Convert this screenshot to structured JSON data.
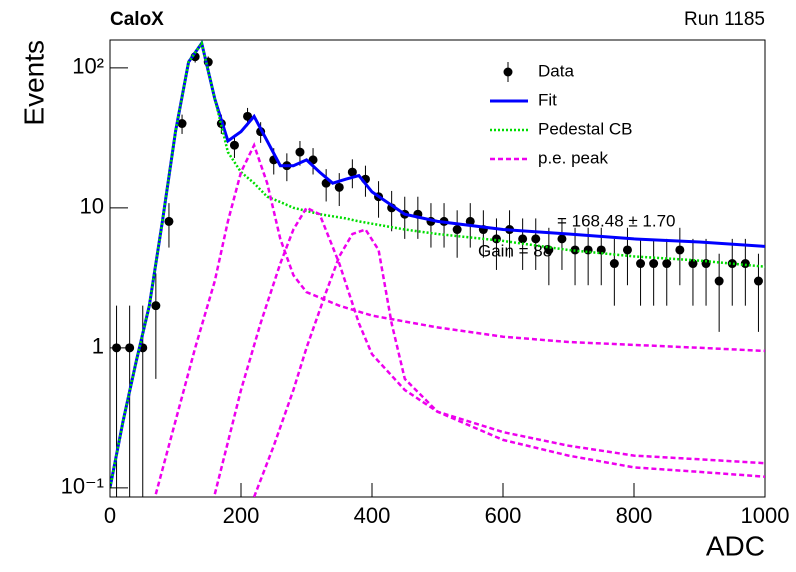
{
  "chart_data": {
    "type": "scatter",
    "log_y": true,
    "title": "CaloX",
    "subtitle": "Run 1185",
    "x_label": "ADC",
    "y_label": "Events",
    "annotations": [
      "= 168.48 ± 1.70",
      "Gain = 88"
    ],
    "xlim": [
      0,
      1000
    ],
    "xticks": [
      0,
      200,
      400,
      600,
      800,
      1000
    ],
    "ylim": [
      0.086,
      158
    ],
    "yticks": [
      {
        "value": 0.1,
        "label": "10⁻¹"
      },
      1,
      10,
      {
        "value": 100,
        "label": "10²"
      }
    ],
    "legend": "upper right",
    "series": [
      {
        "name": "Data",
        "kind": "errorbar",
        "color": "#000000",
        "x": [
          10,
          30,
          50,
          70,
          90,
          110,
          130,
          150,
          170,
          190,
          210,
          230,
          250,
          270,
          290,
          310,
          330,
          350,
          370,
          390,
          410,
          430,
          450,
          470,
          490,
          510,
          530,
          550,
          570,
          590,
          610,
          630,
          650,
          670,
          690,
          710,
          730,
          750,
          770,
          790,
          810,
          830,
          850,
          870,
          890,
          910,
          930,
          950,
          970,
          990
        ],
        "values": [
          1,
          1,
          1,
          2,
          8,
          40,
          120,
          110,
          40,
          28,
          45,
          35,
          22,
          20,
          25,
          22,
          15,
          14,
          18,
          16,
          12,
          10,
          9,
          9,
          8,
          8,
          7,
          8,
          7,
          6,
          7,
          6,
          6,
          5,
          6,
          5,
          5,
          5,
          4,
          5,
          4,
          4,
          4,
          5,
          4,
          4,
          3,
          4,
          4,
          3
        ],
        "errors": [
          1,
          1,
          1,
          1.4,
          2.8,
          6.3,
          11,
          10.5,
          6.3,
          5.3,
          6.7,
          5.9,
          4.7,
          4.5,
          5,
          4.7,
          3.9,
          3.7,
          4.2,
          4,
          3.5,
          3.2,
          3,
          3,
          2.8,
          2.8,
          2.6,
          2.8,
          2.6,
          2.4,
          2.6,
          2.4,
          2.4,
          2.2,
          2.4,
          2.2,
          2.2,
          2.2,
          2,
          2.2,
          2,
          2,
          2,
          2.2,
          2,
          2,
          1.7,
          2,
          2,
          1.7
        ]
      },
      {
        "name": "Fit",
        "kind": "line",
        "style": "solid",
        "color": "#0000ff",
        "x": [
          0,
          20,
          40,
          60,
          80,
          100,
          120,
          140,
          160,
          180,
          200,
          220,
          240,
          260,
          280,
          300,
          320,
          340,
          360,
          380,
          400,
          450,
          500,
          600,
          700,
          800,
          900,
          1000
        ],
        "values": [
          0.1,
          0.3,
          0.8,
          2,
          8,
          35,
          110,
          150,
          60,
          30,
          35,
          45,
          30,
          20,
          20,
          22,
          18,
          15,
          16,
          17,
          13,
          9,
          8,
          7,
          6.5,
          6,
          5.7,
          5.3
        ]
      },
      {
        "name": "Pedestal CB",
        "kind": "line",
        "style": "dotted",
        "color": "#00dd00",
        "x": [
          0,
          20,
          40,
          60,
          80,
          100,
          120,
          140,
          160,
          180,
          200,
          220,
          240,
          260,
          280,
          300,
          320,
          340,
          360,
          380,
          400,
          450,
          500,
          600,
          700,
          800,
          900,
          1000
        ],
        "values": [
          0.1,
          0.3,
          0.8,
          2,
          8,
          35,
          110,
          150,
          60,
          25,
          18,
          15,
          12,
          11,
          10,
          9.5,
          9,
          8.7,
          8.4,
          8,
          7.7,
          7,
          6.5,
          5.8,
          5,
          4.5,
          4.2,
          3.8
        ]
      },
      {
        "name": "p.e. peak",
        "kind": "line",
        "style": "dashed",
        "color": "#ee00ee",
        "x": [
          70,
          100,
          130,
          160,
          180,
          200,
          220,
          240,
          260,
          280,
          300,
          350,
          400,
          500,
          600,
          700,
          800,
          900,
          1000
        ],
        "values": [
          0.09,
          0.3,
          1,
          3,
          8,
          18,
          28,
          15,
          6,
          3.3,
          2.5,
          2,
          1.7,
          1.4,
          1.2,
          1.1,
          1.05,
          1,
          0.95
        ]
      },
      {
        "kind": "line",
        "style": "dashed",
        "color": "#ee00ee",
        "x": [
          160,
          200,
          230,
          260,
          280,
          300,
          320,
          350,
          380,
          400,
          450,
          500,
          600,
          700,
          800,
          900,
          1000
        ],
        "values": [
          0.09,
          0.5,
          1.5,
          4,
          7,
          10,
          9,
          4,
          1.5,
          0.9,
          0.5,
          0.35,
          0.25,
          0.2,
          0.17,
          0.16,
          0.15
        ]
      },
      {
        "kind": "line",
        "style": "dashed",
        "color": "#ee00ee",
        "x": [
          220,
          250,
          280,
          300,
          330,
          350,
          370,
          390,
          410,
          430,
          450,
          500,
          600,
          700,
          800,
          900,
          1000
        ],
        "values": [
          0.086,
          0.2,
          0.5,
          1,
          2.5,
          4.5,
          6.5,
          7,
          5,
          1.5,
          0.6,
          0.35,
          0.22,
          0.17,
          0.14,
          0.13,
          0.12
        ]
      }
    ]
  }
}
